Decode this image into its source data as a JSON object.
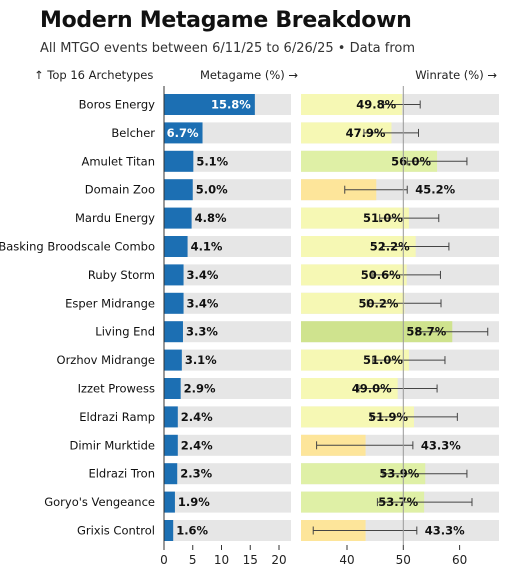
{
  "title": "Modern Metagame Breakdown",
  "subtitle": "All MTGO events between 6/11/25 to 6/26/25 • Data from",
  "headers": {
    "archetypes": "↑ Top 16 Archetypes",
    "metagame": "Metagame (%) →",
    "winrate": "Winrate (%) →"
  },
  "colors": {
    "metagame_bar": "#1c6fb3",
    "track": "#e6e6e6",
    "winrate_high": "#cfe38e",
    "winrate_mid_high": "#dff0a6",
    "winrate_mid": "#f6f8b4",
    "winrate_low": "#fde59a",
    "reference_line": "#999999"
  },
  "chart_data": [
    {
      "type": "bar",
      "title": "",
      "xlabel": "Metagame (%)",
      "orientation": "horizontal",
      "categories": [
        "Boros Energy",
        "Belcher",
        "Amulet Titan",
        "Domain Zoo",
        "Mardu Energy",
        "Ral Basking Broodscale Combo",
        "Ruby Storm",
        "Esper Midrange",
        "Living End",
        "Orzhov Midrange",
        "Izzet Prowess",
        "Eldrazi Ramp",
        "Dimir Murktide",
        "Eldrazi Tron",
        "Goryo's Vengeance",
        "Grixis Control"
      ],
      "values": [
        15.8,
        6.7,
        5.1,
        5.0,
        4.8,
        4.1,
        3.4,
        3.4,
        3.3,
        3.1,
        2.9,
        2.4,
        2.4,
        2.3,
        1.9,
        1.6
      ],
      "labels": [
        "15.8%",
        "6.7%",
        "5.1%",
        "5.0%",
        "4.8%",
        "4.1%",
        "3.4%",
        "3.4%",
        "3.3%",
        "3.1%",
        "2.9%",
        "2.4%",
        "2.4%",
        "2.3%",
        "1.9%",
        "1.6%"
      ],
      "xlim": [
        0,
        22
      ],
      "xticks": [
        0,
        5,
        10,
        15,
        20
      ]
    },
    {
      "type": "bar",
      "title": "",
      "xlabel": "Winrate (%)",
      "orientation": "horizontal",
      "categories": [
        "Boros Energy",
        "Belcher",
        "Amulet Titan",
        "Domain Zoo",
        "Mardu Energy",
        "Ral Basking Broodscale Combo",
        "Ruby Storm",
        "Esper Midrange",
        "Living End",
        "Orzhov Midrange",
        "Izzet Prowess",
        "Eldrazi Ramp",
        "Dimir Murktide",
        "Eldrazi Tron",
        "Goryo's Vengeance",
        "Grixis Control"
      ],
      "values": [
        49.8,
        47.9,
        56.0,
        45.2,
        51.0,
        52.2,
        50.6,
        50.2,
        58.7,
        51.0,
        49.0,
        51.9,
        43.3,
        53.9,
        53.7,
        43.3
      ],
      "labels": [
        "49.8%",
        "47.9%",
        "56.0%",
        "45.2%",
        "51.0%",
        "52.2%",
        "50.6%",
        "50.2%",
        "58.7%",
        "51.0%",
        "49.0%",
        "51.9%",
        "43.3%",
        "53.9%",
        "53.7%",
        "43.3%"
      ],
      "ci_low": [
        46.5,
        43.0,
        50.7,
        39.6,
        45.8,
        46.3,
        44.6,
        43.6,
        52.3,
        44.6,
        42.1,
        44.3,
        34.6,
        46.4,
        45.4,
        34.0
      ],
      "ci_high": [
        53.0,
        52.7,
        61.3,
        50.7,
        56.3,
        58.1,
        56.6,
        56.7,
        65.0,
        57.4,
        56.0,
        59.6,
        51.7,
        61.3,
        62.2,
        52.4
      ],
      "reference_line": 50,
      "xlim": [
        28,
        67
      ],
      "xticks": [
        40,
        50,
        60
      ]
    }
  ]
}
